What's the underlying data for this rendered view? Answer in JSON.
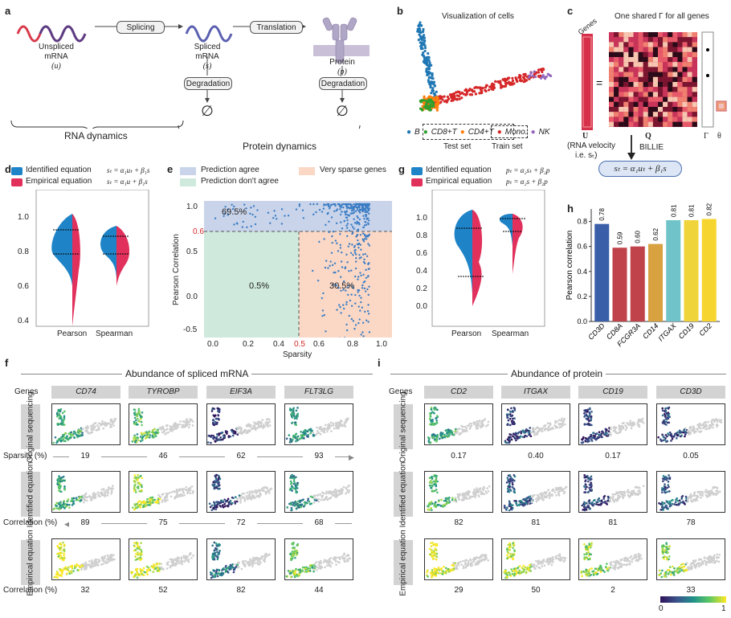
{
  "panels": {
    "a": "a",
    "b": "b",
    "c": "c",
    "d": "d",
    "e": "e",
    "f": "f",
    "g": "g",
    "h": "h",
    "i": "i"
  },
  "panel_a": {
    "splicing": "Splicing",
    "translation": "Translation",
    "degradation": "Degradation",
    "unspliced": "Unspliced",
    "spliced": "Spliced",
    "mrna": "mRNA",
    "u": "(u)",
    "s": "(s)",
    "protein": "Protein",
    "p": "(p)",
    "empty": "∅",
    "rna_dynamics": "RNA dynamics",
    "protein_dynamics": "Protein dynamics"
  },
  "panel_b": {
    "title": "Visualization of cells",
    "legend": [
      "B",
      "CD8+T",
      "CD4+T",
      "Mono.",
      "NK"
    ],
    "legend_colors": [
      "#1f77b4",
      "#2ca02c",
      "#ff7f0e",
      "#d62728",
      "#9467bd"
    ],
    "test_set": "Test set",
    "train_set": "Train set"
  },
  "panel_c": {
    "genes": "Genes",
    "shared": "One shared Γ for all genes",
    "U": "U",
    "Q": "Q",
    "Gamma": "Γ",
    "theta": "θ",
    "rna_velocity": "(RNA velocity",
    "ie": "i.e. sₜ)",
    "billie": "BILLIE",
    "equation": "sₜ = α₁uₜ + β₁s"
  },
  "panel_d": {
    "legend_identified": "Identified equation",
    "eq_identified": "sₜ = α₁uₜ + β₁s",
    "legend_empirical": "Empirical equation",
    "eq_empirical": "sₜ = α₁u + β₁s",
    "yticks": [
      "1.0",
      "0.8",
      "0.6",
      "0.4"
    ],
    "xticks": [
      "Pearson",
      "Spearman"
    ]
  },
  "panel_e": {
    "legend": [
      "Prediction agree",
      "Very sparse genes",
      "Prediction don't agree"
    ],
    "legend_colors": [
      "#c9d4ea",
      "#fbd8c6",
      "#cfe9dc"
    ],
    "pct_top": "69.5%",
    "pct_bottom_left": "0.5%",
    "pct_bottom_right": "30.5%",
    "thr_y": "0.6",
    "thr_x": "0.5",
    "ylabel": "Pearson Correlation",
    "xlabel": "Sparsity",
    "yticks": [
      "1.0",
      "0.5",
      "0.0",
      "-0.5"
    ],
    "xticks": [
      "0.0",
      "0.2",
      "0.4",
      "0.6",
      "0.8",
      "1.0"
    ]
  },
  "panel_g": {
    "legend_identified": "Identified equation",
    "eq_identified": "pₜ = α₂sₜ + β₂p",
    "legend_empirical": "Empirical equation",
    "eq_empirical": "pₜ = α₂s + β₂p",
    "yticks": [
      "1.0",
      "0.8",
      "0.6",
      "0.4",
      "0.2",
      "0.0"
    ],
    "xticks": [
      "Pearson",
      "Spearman"
    ]
  },
  "chart_data": [
    {
      "type": "bar",
      "panel": "h",
      "categories": [
        "CD3D",
        "CD8A",
        "FCGR3A",
        "CD14",
        "ITGAX",
        "CD19",
        "CD2"
      ],
      "values": [
        0.78,
        0.59,
        0.6,
        0.62,
        0.81,
        0.81,
        0.82
      ],
      "labels": [
        "0.78",
        "0.59",
        "0.60",
        "0.62",
        "0.81",
        "0.81",
        "0.82"
      ],
      "colors": [
        "#3a5fa8",
        "#c0424b",
        "#c0424b",
        "#d7a23f",
        "#6fc3c9",
        "#f0d43b",
        "#f7d530"
      ],
      "ylabel": "Pearson correlation",
      "yticks": [
        "0.0",
        "0.2",
        "0.4",
        "0.6",
        "0.8"
      ],
      "ylim": [
        0,
        0.9
      ]
    }
  ],
  "panel_f": {
    "title": "Abundance of spliced mRNA",
    "genes_label": "Genes",
    "genes": [
      "CD74",
      "TYROBP",
      "EIF3A",
      "FLT3LG"
    ],
    "row_original": "Original sequencing",
    "row_identified": "Identified equation",
    "row_empirical": "Empirical equation",
    "sparsity_label": "Sparsity (%)",
    "sparsity": [
      "19",
      "46",
      "62",
      "93"
    ],
    "corr_label": "Correlation (%)",
    "corr_identified": [
      "89",
      "75",
      "72",
      "68"
    ],
    "corr_empirical": [
      "32",
      "52",
      "82",
      "44"
    ]
  },
  "panel_i": {
    "title": "Abundance of protein",
    "genes_label": "Genes",
    "genes": [
      "CD2",
      "ITGAX",
      "CD19",
      "CD3D"
    ],
    "sparsity": [
      "0.17",
      "0.40",
      "0.17",
      "0.05"
    ],
    "corr_identified": [
      "82",
      "81",
      "81",
      "78"
    ],
    "corr_empirical": [
      "29",
      "50",
      "2",
      "33"
    ],
    "colorbar_min": "0",
    "colorbar_max": "1"
  }
}
